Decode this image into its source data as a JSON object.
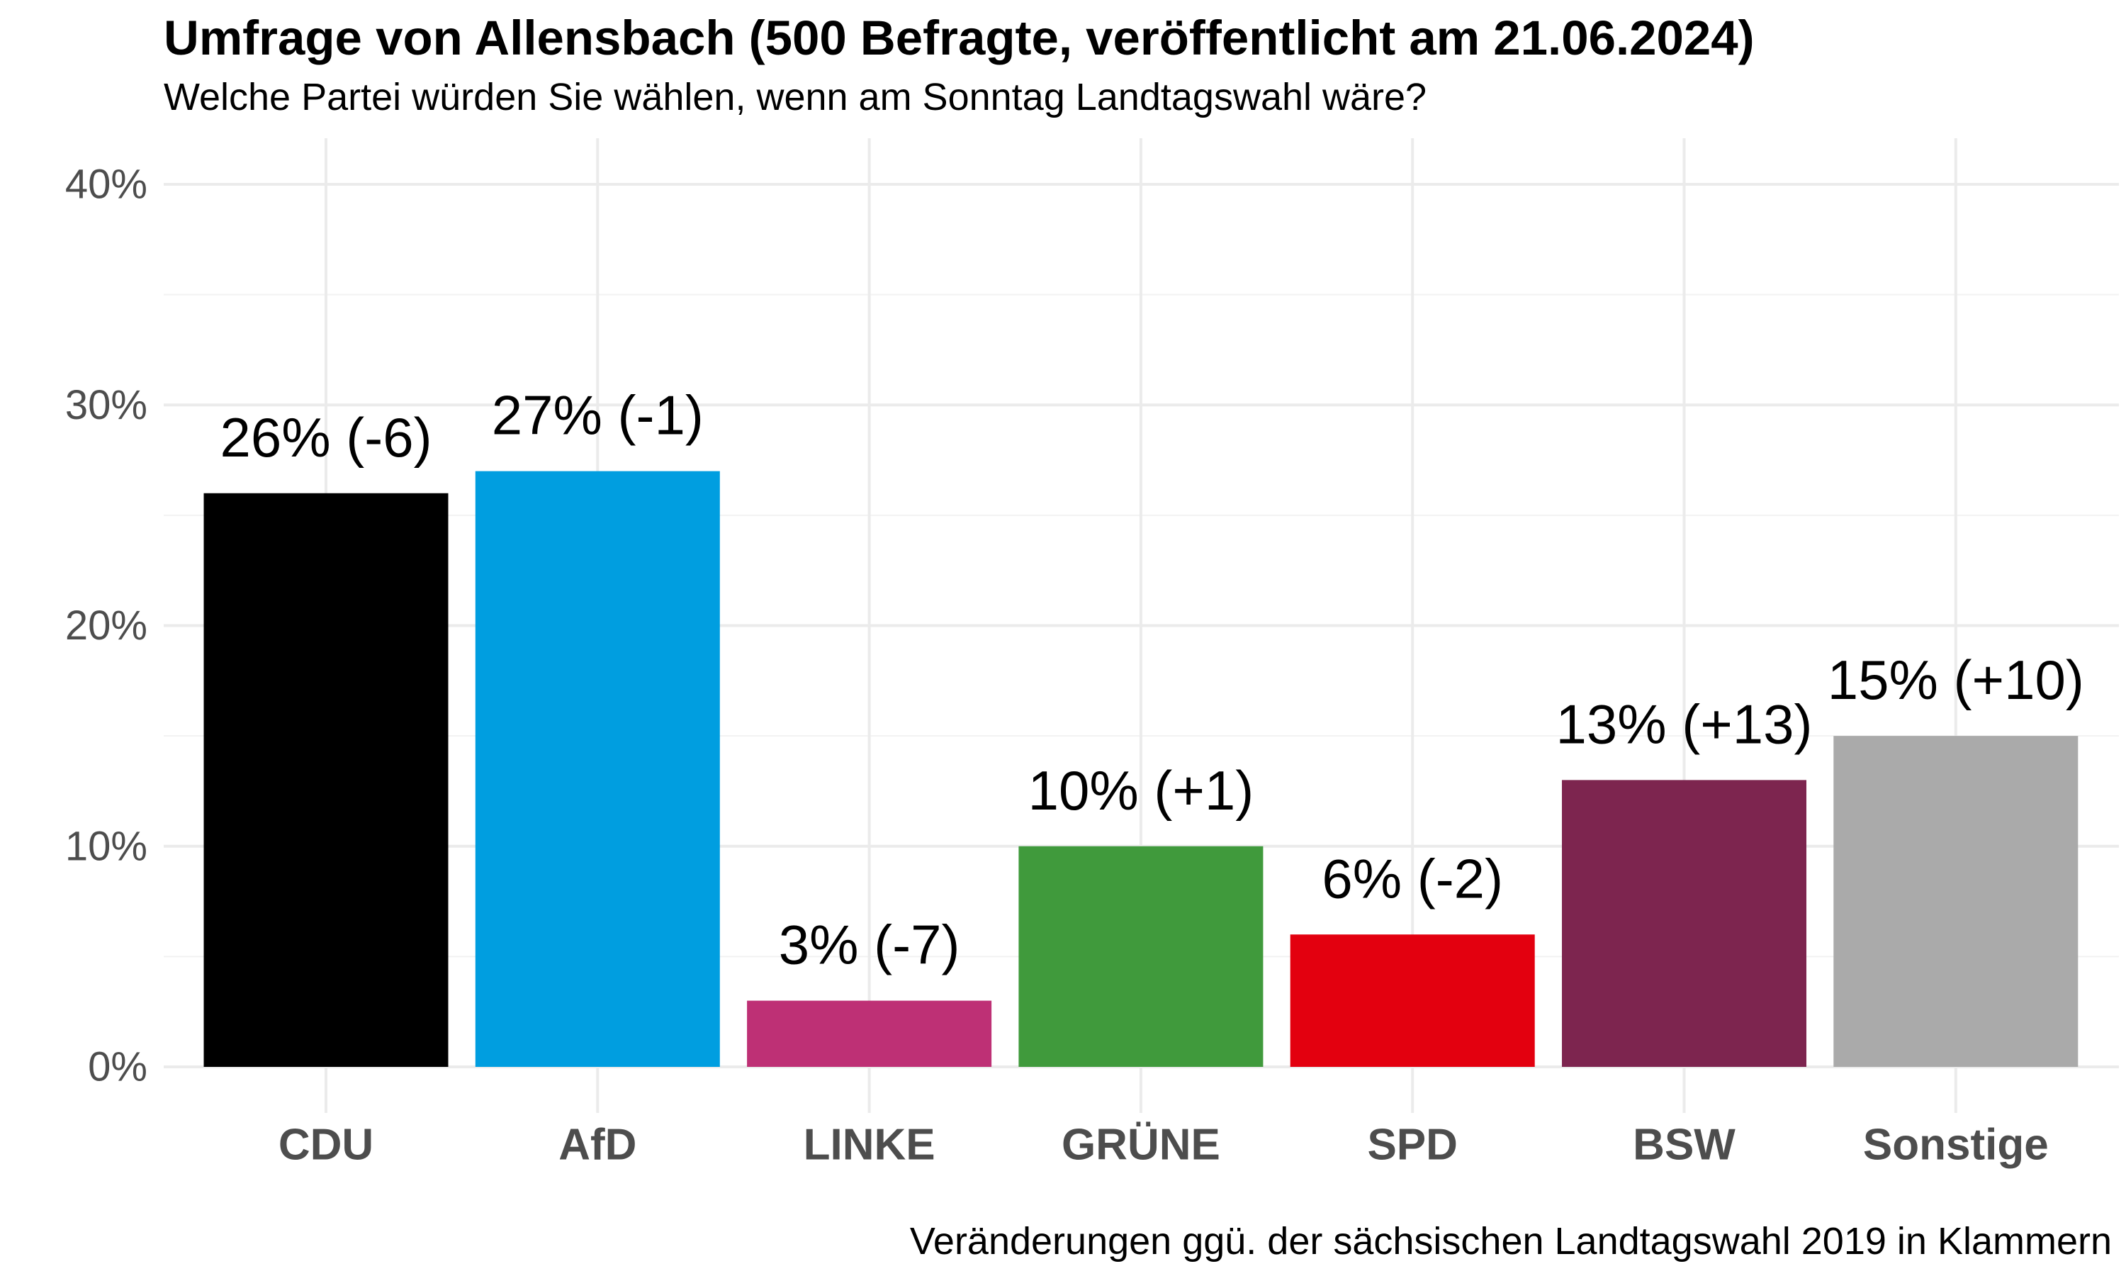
{
  "chart_data": {
    "type": "bar",
    "title": "Umfrage von Allensbach (500 Befragte, veröffentlicht am 21.06.2024)",
    "subtitle": "Welche Partei würden Sie wählen, wenn am Sonntag Landtagswahl wäre?",
    "caption": "Veränderungen ggü. der sächsischen Landtagswahl 2019 in Klammern",
    "xlabel": "",
    "ylabel": "",
    "ylim": [
      0,
      40
    ],
    "y_ticks": [
      0,
      10,
      20,
      30,
      40
    ],
    "y_tick_labels": [
      "0%",
      "10%",
      "20%",
      "30%",
      "40%"
    ],
    "grid": true,
    "categories": [
      "CDU",
      "AfD",
      "LINKE",
      "GRÜNE",
      "SPD",
      "BSW",
      "Sonstige"
    ],
    "values": [
      26,
      27,
      3,
      10,
      6,
      13,
      15
    ],
    "changes": [
      -6,
      -1,
      -7,
      1,
      -2,
      13,
      10
    ],
    "data_labels": [
      "26% (-6)",
      "27% (-1)",
      "3% (-7)",
      "10% (+1)",
      "6% (-2)",
      "13% (+13)",
      "15% (+10)"
    ],
    "colors": [
      "#000000",
      "#009EE0",
      "#BE3075",
      "#409A3C",
      "#E3000F",
      "#7D254F",
      "#AAAAAA"
    ]
  }
}
